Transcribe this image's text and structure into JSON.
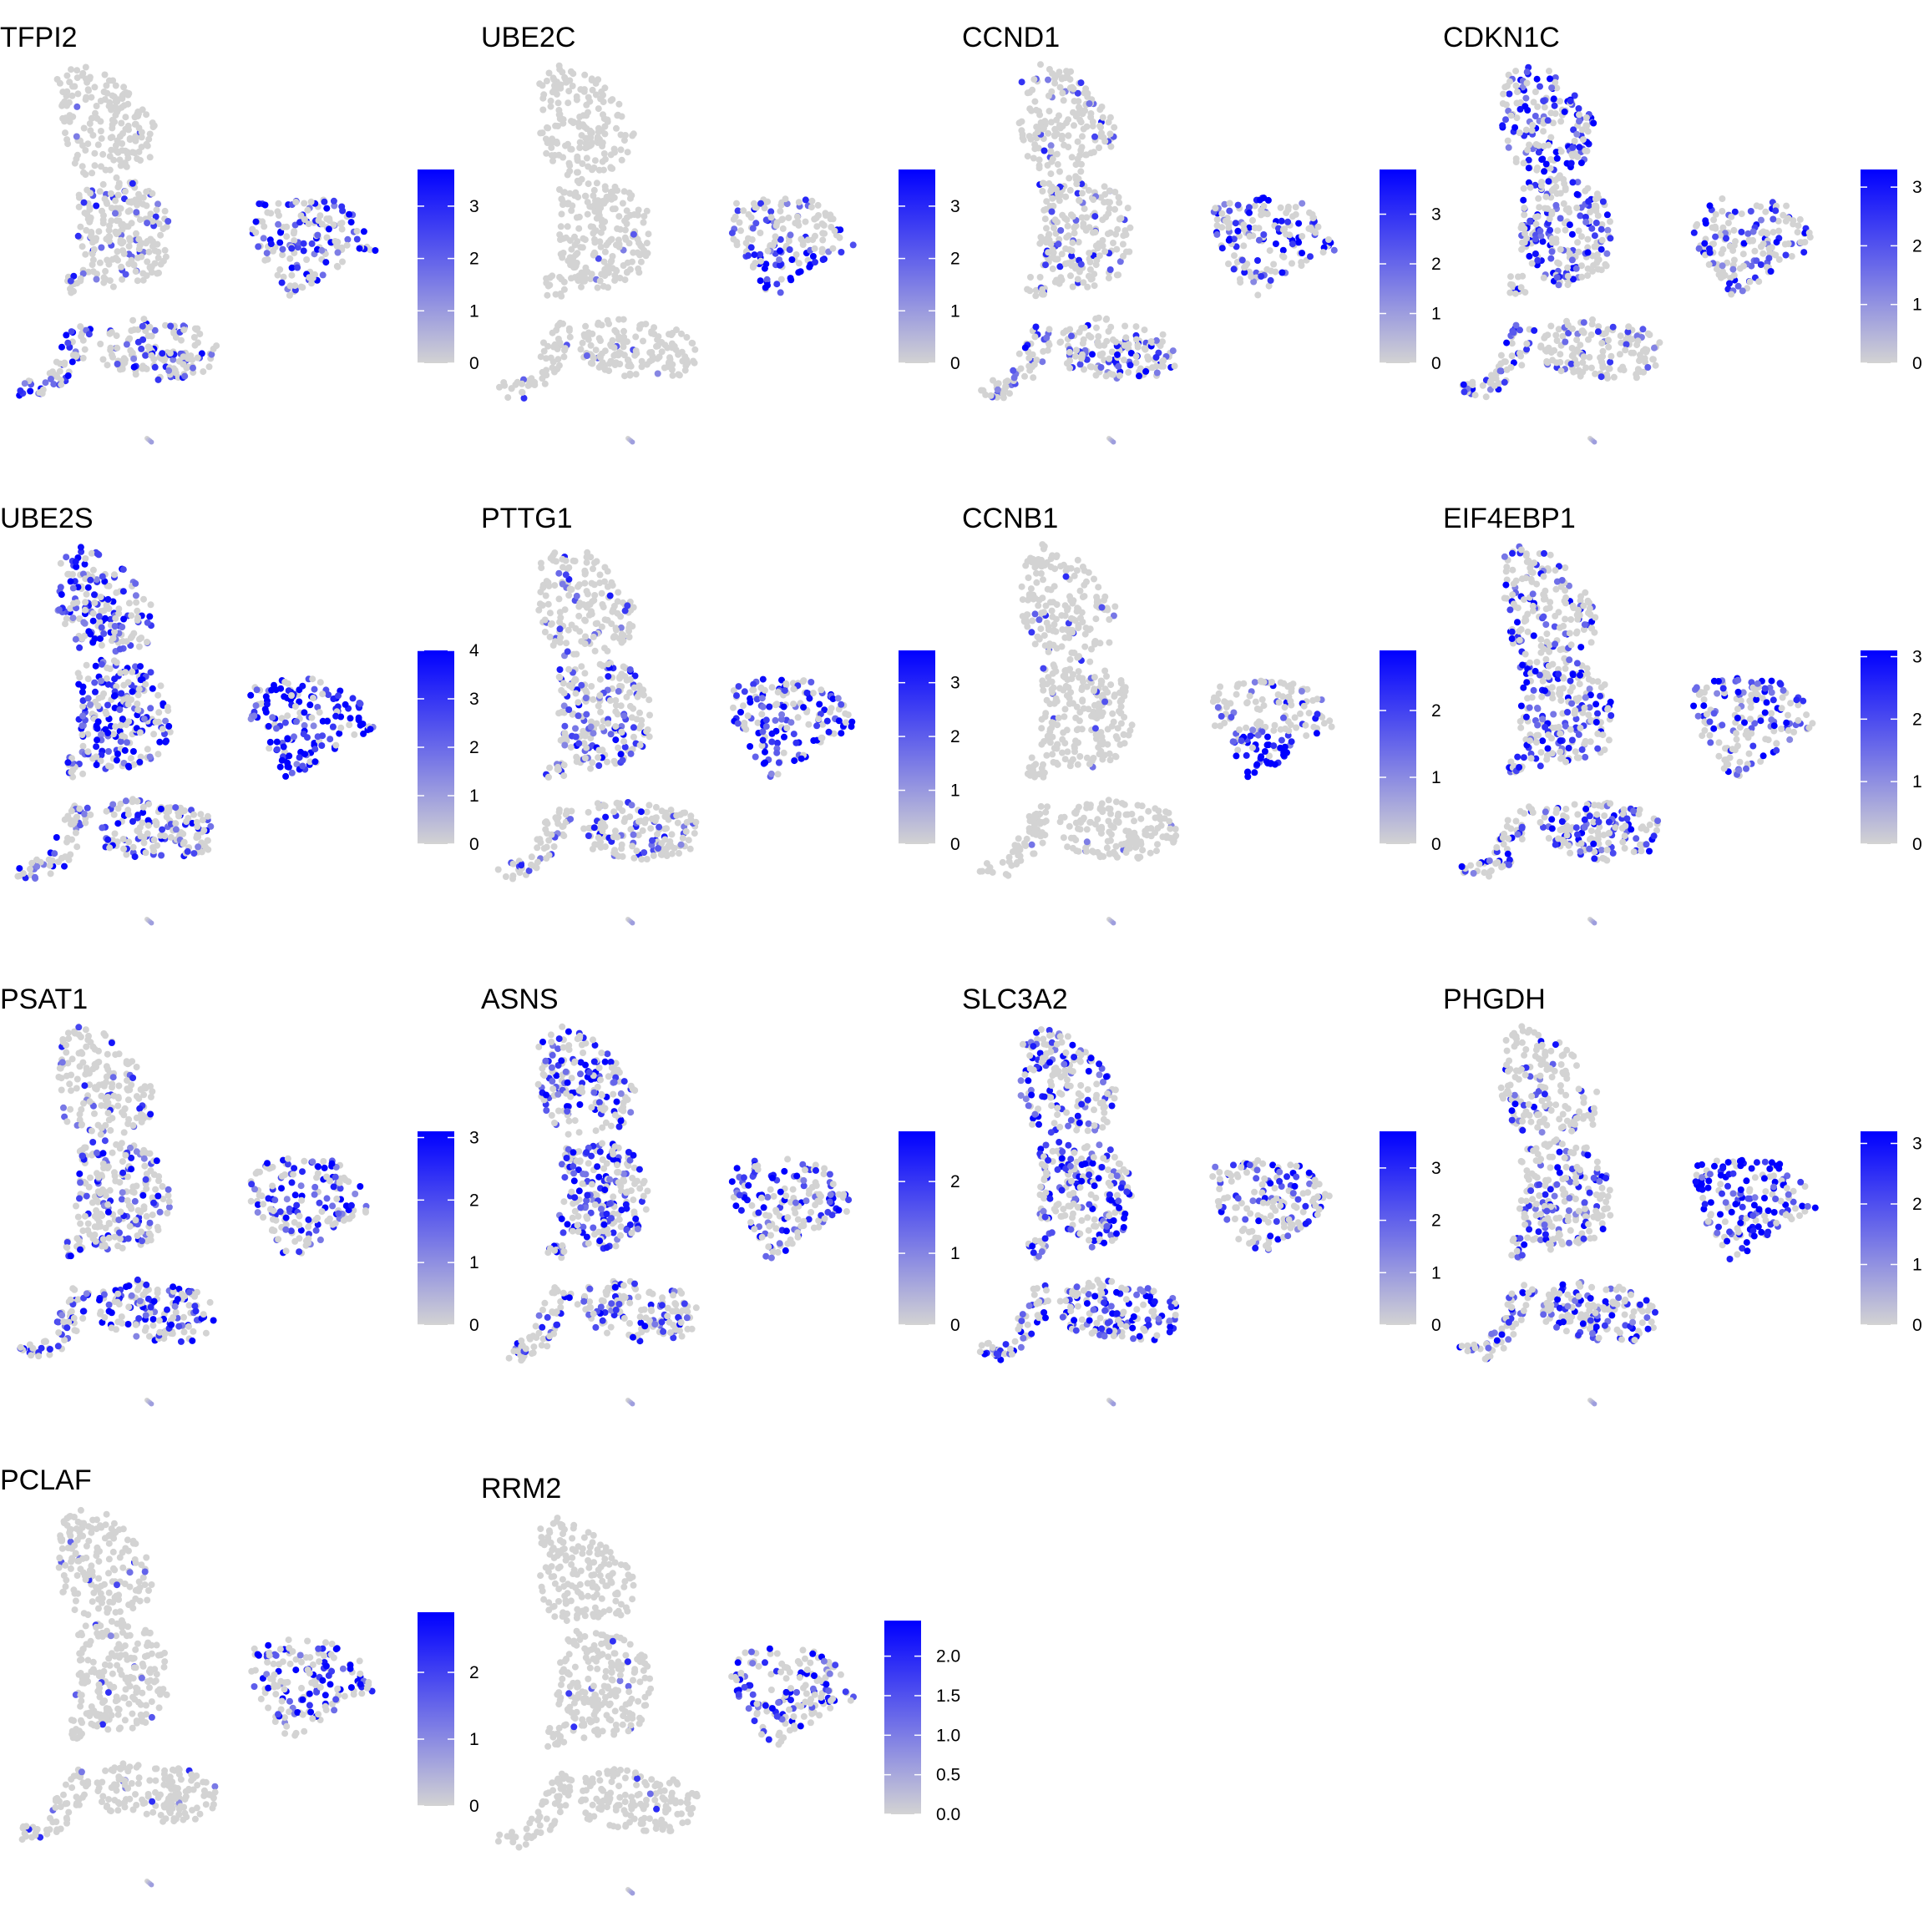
{
  "figure": {
    "colors": {
      "low": "#d3d3d3",
      "high": "#0000ff",
      "tick": "#000000"
    },
    "columns": 4
  },
  "chart_data": [
    {
      "type": "scatter",
      "title": "TFPI2",
      "legend_ticks": [
        "0",
        "1",
        "2",
        "3"
      ],
      "color_range": [
        0,
        3.7
      ],
      "legend_position": "right",
      "expression_pattern": {
        "top_lobe": 0.02,
        "middle_lobe": 0.12,
        "right_cluster": 0.45,
        "right_cluster_bottom": 0.4,
        "bottom_cluster": 0.25,
        "bottom_left_arm": 0.55
      }
    },
    {
      "type": "scatter",
      "title": "UBE2C",
      "legend_ticks": [
        "0",
        "1",
        "2",
        "3"
      ],
      "color_range": [
        0,
        3.7
      ],
      "legend_position": "right",
      "expression_pattern": {
        "top_lobe": 0.01,
        "middle_lobe": 0.02,
        "right_cluster": 0.25,
        "right_cluster_bottom": 0.8,
        "bottom_cluster": 0.03,
        "bottom_left_arm": 0.02
      }
    },
    {
      "type": "scatter",
      "title": "CCND1",
      "legend_ticks": [
        "0",
        "1",
        "2",
        "3"
      ],
      "color_range": [
        0,
        3.9
      ],
      "legend_position": "right",
      "expression_pattern": {
        "top_lobe": 0.1,
        "middle_lobe": 0.15,
        "right_cluster": 0.45,
        "right_cluster_bottom": 0.35,
        "bottom_cluster": 0.35,
        "bottom_left_arm": 0.3
      }
    },
    {
      "type": "scatter",
      "title": "CDKN1C",
      "legend_ticks": [
        "0",
        "1",
        "2",
        "3"
      ],
      "color_range": [
        0,
        3.3
      ],
      "legend_position": "right",
      "expression_pattern": {
        "top_lobe": 0.55,
        "middle_lobe": 0.4,
        "right_cluster": 0.35,
        "right_cluster_bottom": 0.3,
        "bottom_cluster": 0.15,
        "bottom_left_arm": 0.3
      }
    },
    {
      "type": "scatter",
      "title": "UBE2S",
      "legend_ticks": [
        "0",
        "1",
        "2",
        "3",
        "4"
      ],
      "color_range": [
        0,
        4.0
      ],
      "legend_position": "right",
      "expression_pattern": {
        "top_lobe": 0.5,
        "middle_lobe": 0.55,
        "right_cluster": 0.75,
        "right_cluster_bottom": 0.85,
        "bottom_cluster": 0.35,
        "bottom_left_arm": 0.3
      }
    },
    {
      "type": "scatter",
      "title": "PTTG1",
      "legend_ticks": [
        "0",
        "1",
        "2",
        "3"
      ],
      "color_range": [
        0,
        3.6
      ],
      "legend_position": "right",
      "expression_pattern": {
        "top_lobe": 0.12,
        "middle_lobe": 0.3,
        "right_cluster": 0.5,
        "right_cluster_bottom": 0.65,
        "bottom_cluster": 0.2,
        "bottom_left_arm": 0.15
      }
    },
    {
      "type": "scatter",
      "title": "CCNB1",
      "legend_ticks": [
        "0",
        "1",
        "2"
      ],
      "color_range": [
        0,
        2.9
      ],
      "legend_position": "right",
      "expression_pattern": {
        "top_lobe": 0.03,
        "middle_lobe": 0.05,
        "right_cluster": 0.2,
        "right_cluster_bottom": 0.85,
        "bottom_cluster": 0.05,
        "bottom_left_arm": 0.03
      }
    },
    {
      "type": "scatter",
      "title": "EIF4EBP1",
      "legend_ticks": [
        "0",
        "1",
        "2",
        "3"
      ],
      "color_range": [
        0,
        3.1
      ],
      "legend_position": "right",
      "expression_pattern": {
        "top_lobe": 0.3,
        "middle_lobe": 0.45,
        "right_cluster": 0.55,
        "right_cluster_bottom": 0.35,
        "bottom_cluster": 0.4,
        "bottom_left_arm": 0.35
      }
    },
    {
      "type": "scatter",
      "title": "PSAT1",
      "legend_ticks": [
        "0",
        "1",
        "2",
        "3"
      ],
      "color_range": [
        0,
        3.1
      ],
      "legend_position": "right",
      "expression_pattern": {
        "top_lobe": 0.15,
        "middle_lobe": 0.3,
        "right_cluster": 0.55,
        "right_cluster_bottom": 0.3,
        "bottom_cluster": 0.5,
        "bottom_left_arm": 0.45
      }
    },
    {
      "type": "scatter",
      "title": "ASNS",
      "legend_ticks": [
        "0",
        "1",
        "2"
      ],
      "color_range": [
        0,
        2.7
      ],
      "legend_position": "right",
      "expression_pattern": {
        "top_lobe": 0.4,
        "middle_lobe": 0.45,
        "right_cluster": 0.55,
        "right_cluster_bottom": 0.3,
        "bottom_cluster": 0.3,
        "bottom_left_arm": 0.25
      }
    },
    {
      "type": "scatter",
      "title": "SLC3A2",
      "legend_ticks": [
        "0",
        "1",
        "2",
        "3"
      ],
      "color_range": [
        0,
        3.7
      ],
      "legend_position": "right",
      "expression_pattern": {
        "top_lobe": 0.45,
        "middle_lobe": 0.5,
        "right_cluster": 0.4,
        "right_cluster_bottom": 0.35,
        "bottom_cluster": 0.55,
        "bottom_left_arm": 0.45
      }
    },
    {
      "type": "scatter",
      "title": "PHGDH",
      "legend_ticks": [
        "0",
        "1",
        "2",
        "3"
      ],
      "color_range": [
        0,
        3.2
      ],
      "legend_position": "right",
      "expression_pattern": {
        "top_lobe": 0.25,
        "middle_lobe": 0.3,
        "right_cluster": 0.7,
        "right_cluster_bottom": 0.55,
        "bottom_cluster": 0.4,
        "bottom_left_arm": 0.35
      }
    },
    {
      "type": "scatter",
      "title": "PCLAF",
      "legend_ticks": [
        "0",
        "1",
        "2"
      ],
      "color_range": [
        0,
        2.9
      ],
      "legend_position": "right",
      "expression_pattern": {
        "top_lobe": 0.02,
        "middle_lobe": 0.03,
        "right_cluster": 0.45,
        "right_cluster_bottom": 0.45,
        "bottom_cluster": 0.05,
        "bottom_left_arm": 0.03
      }
    },
    {
      "type": "scatter",
      "title": "RRM2",
      "legend_ticks": [
        "0.0",
        "0.5",
        "1.0",
        "1.5",
        "2.0"
      ],
      "color_range": [
        0,
        2.45
      ],
      "legend_position": "right",
      "expression_pattern": {
        "top_lobe": 0.01,
        "middle_lobe": 0.02,
        "right_cluster": 0.45,
        "right_cluster_bottom": 0.4,
        "bottom_cluster": 0.03,
        "bottom_left_arm": 0.02
      }
    }
  ]
}
